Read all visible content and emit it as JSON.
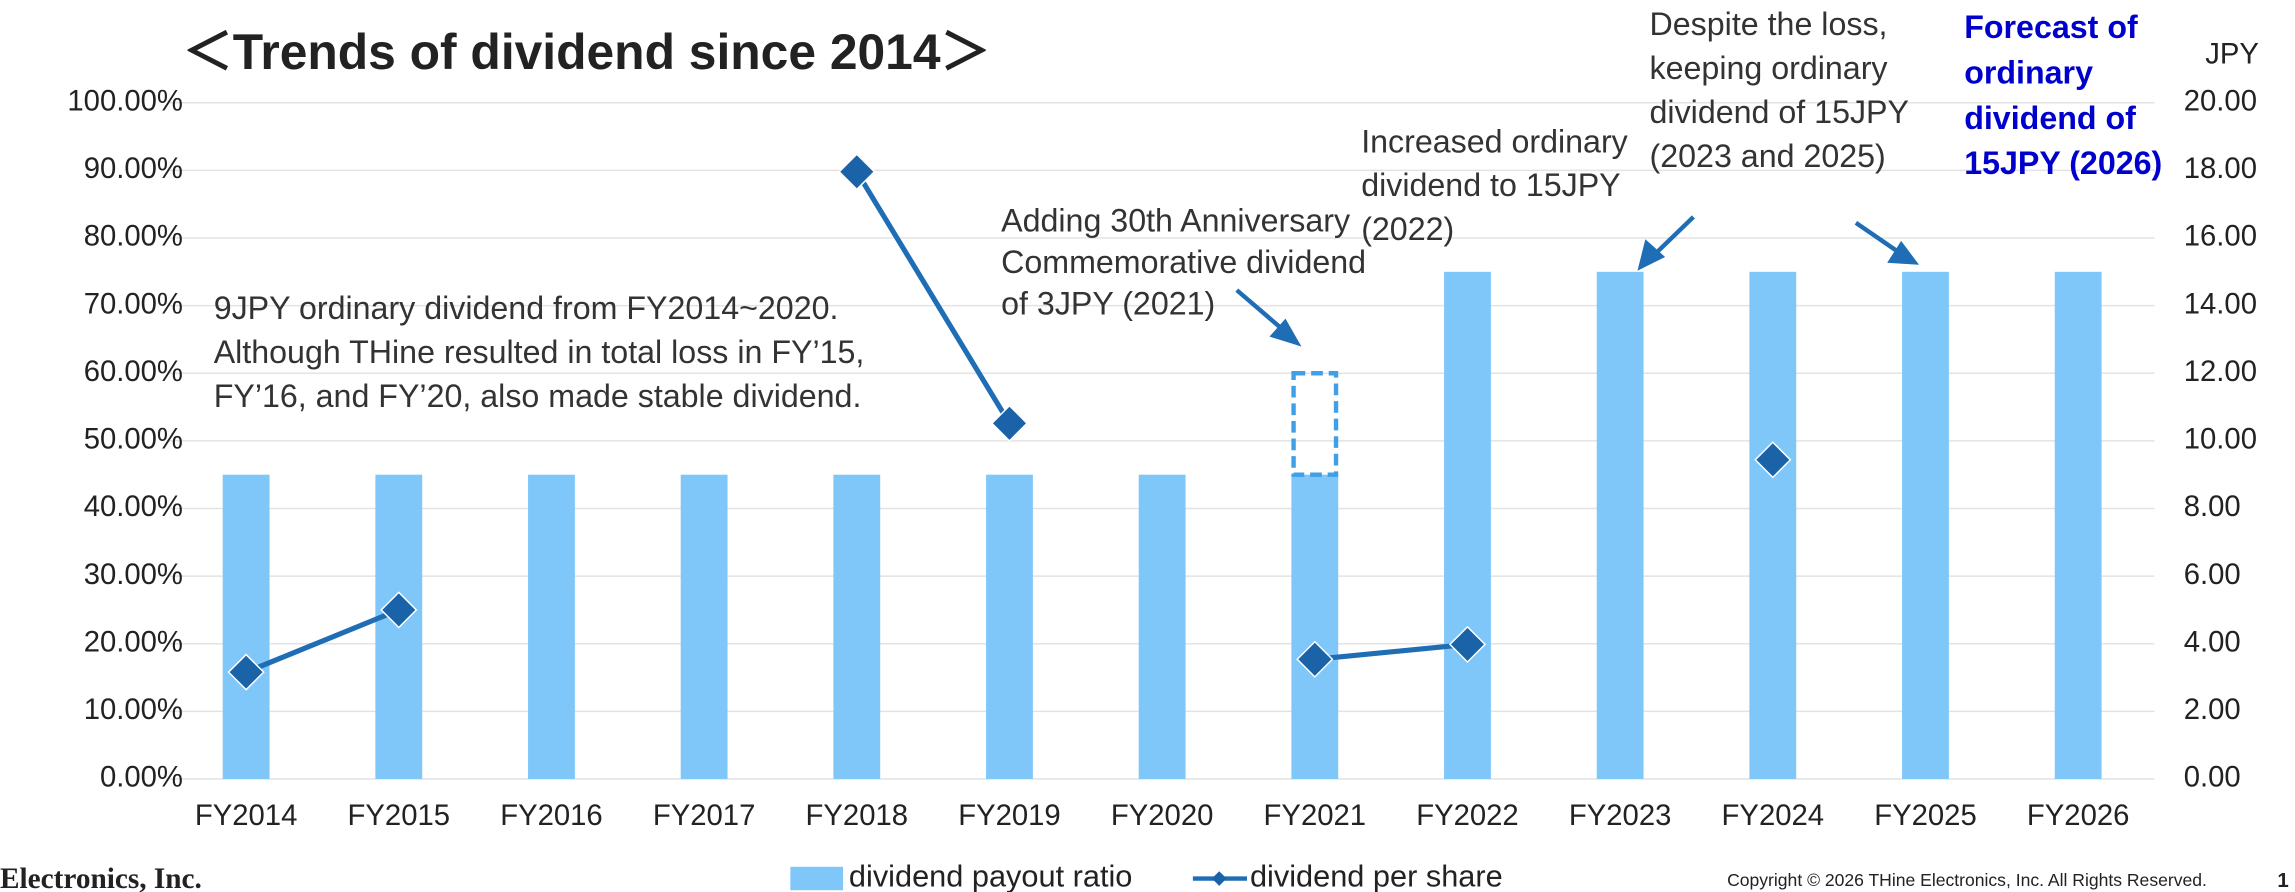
{
  "chart_data": {
    "type": "bar",
    "title": "＜Trends of dividend since 2014＞",
    "y2_label": "JPY",
    "categories": [
      "FY2014",
      "FY2015",
      "FY2016",
      "FY2017",
      "FY2018",
      "FY2019",
      "FY2020",
      "FY2021",
      "FY2022",
      "FY2023",
      "FY2024",
      "FY2025",
      "FY2026"
    ],
    "series": [
      {
        "name": "dividend payout ratio",
        "type": "bar",
        "axis": "y2",
        "color": "#7fc7f9",
        "values": [
          9,
          9,
          9,
          9,
          9,
          9,
          9,
          9,
          15,
          15,
          15,
          15,
          15
        ]
      },
      {
        "name": "dividend per share",
        "type": "line",
        "color": "#1f6db5",
        "marker_color": "#1a63a8",
        "values": [
          15.8,
          25,
          null,
          null,
          89.8,
          52.6,
          null,
          17.7,
          19.9,
          null,
          47.2,
          null,
          null
        ]
      }
    ],
    "stacked_extra": {
      "color": "#3fa0e8",
      "values": [
        null,
        null,
        null,
        null,
        null,
        null,
        null,
        3,
        null,
        null,
        null,
        null,
        null
      ]
    },
    "ylim": [
      0,
      100
    ],
    "yticks": [
      {
        "value": 0,
        "label": "0.00%"
      },
      {
        "value": 10,
        "label": "10.00%"
      },
      {
        "value": 20,
        "label": "20.00%"
      },
      {
        "value": 30,
        "label": "30.00%"
      },
      {
        "value": 40,
        "label": "40.00%"
      },
      {
        "value": 50,
        "label": "50.00%"
      },
      {
        "value": 60,
        "label": "60.00%"
      },
      {
        "value": 70,
        "label": "70.00%"
      },
      {
        "value": 80,
        "label": "80.00%"
      },
      {
        "value": 90,
        "label": "90.00%"
      },
      {
        "value": 100,
        "label": "100.00%"
      }
    ],
    "y2lim": [
      0,
      20
    ],
    "y2ticks": [
      {
        "value": 0,
        "label": "0.00"
      },
      {
        "value": 2,
        "label": "2.00"
      },
      {
        "value": 4,
        "label": "4.00"
      },
      {
        "value": 6,
        "label": "6.00"
      },
      {
        "value": 8,
        "label": "8.00"
      },
      {
        "value": 10,
        "label": "10.00"
      },
      {
        "value": 12,
        "label": "12.00"
      },
      {
        "value": 14,
        "label": "14.00"
      },
      {
        "value": 16,
        "label": "16.00"
      },
      {
        "value": 18,
        "label": "18.00"
      },
      {
        "value": 20,
        "label": "20.00"
      }
    ],
    "grid": true,
    "legend": "bottom",
    "annotations": [
      [
        "9JPY ordinary dividend from FY2014~2020.",
        "Although THine resulted in total loss in FY’15,",
        "FY’16, and FY’20, also made stable dividend."
      ],
      [
        "Adding 30th Anniversary",
        "Commemorative dividend",
        "of 3JPY (2021)"
      ],
      [
        "Increased ordinary",
        "dividend to 15JPY",
        "(2022)"
      ],
      [
        "Despite the loss,",
        "keeping ordinary",
        "dividend of 15JPY",
        "(2023 and 2025)"
      ],
      [
        "Forecast of",
        "ordinary",
        "dividend of",
        "15JPY (2026)"
      ]
    ]
  },
  "footer": {
    "company": "Electronics, Inc.",
    "copyright": "Copyright © 2026 THine Electronics, Inc. All Rights Reserved.",
    "page": "1"
  }
}
